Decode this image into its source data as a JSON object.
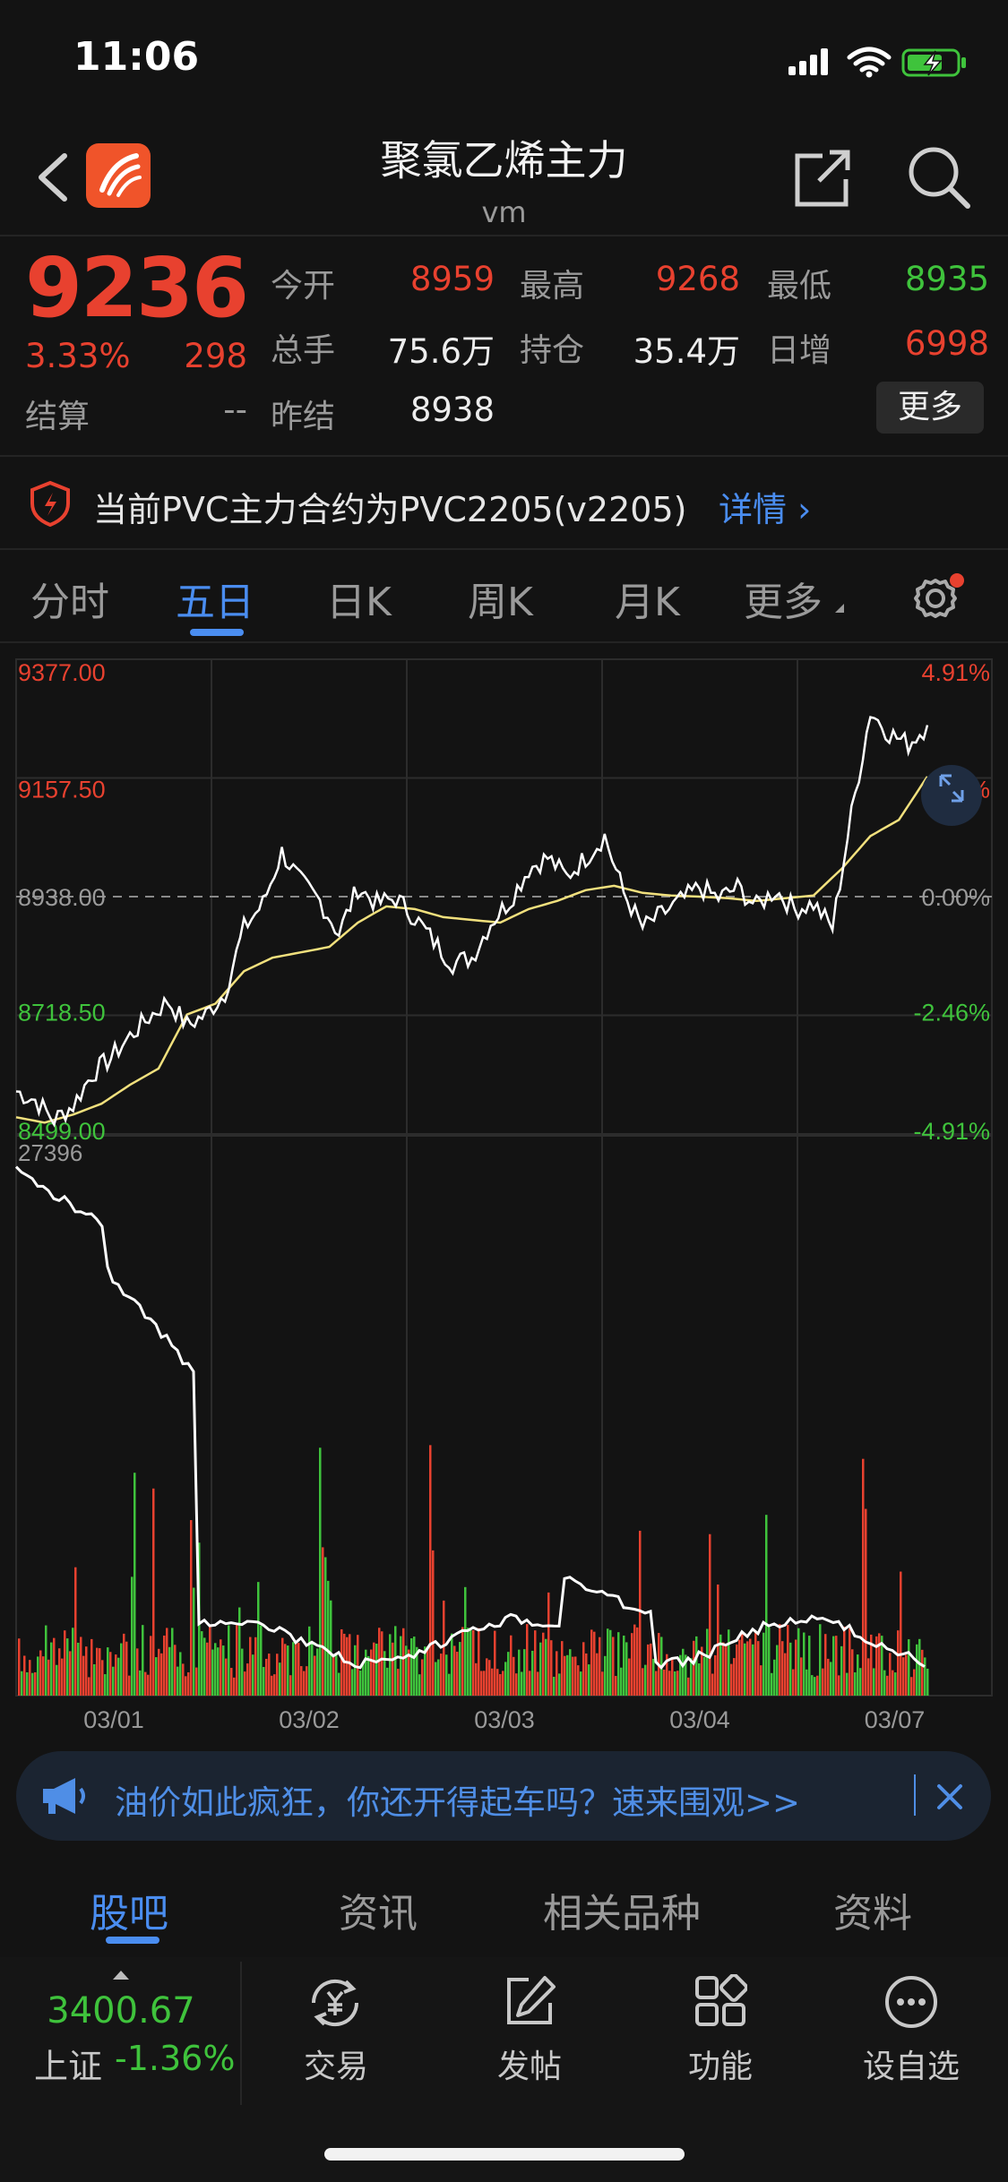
{
  "status_bar": {
    "time": "11:06"
  },
  "header": {
    "title": "聚氯乙烯主力",
    "subtitle": "vm"
  },
  "quote": {
    "price": "9236",
    "change_pct": "3.33%",
    "change": "298",
    "settle_label": "结算",
    "settle_value": "--",
    "rows": [
      {
        "label": "今开",
        "value": "8959",
        "color": "red"
      },
      {
        "label": "最高",
        "value": "9268",
        "color": "red"
      },
      {
        "label": "最低",
        "value": "8935",
        "color": "green"
      },
      {
        "label": "总手",
        "value": "75.6万",
        "color": "white"
      },
      {
        "label": "持仓",
        "value": "35.4万",
        "color": "white"
      },
      {
        "label": "日增",
        "value": "6998",
        "color": "red"
      },
      {
        "label": "昨结",
        "value": "8938",
        "color": "white"
      }
    ],
    "more_label": "更多"
  },
  "notice": {
    "text": "当前PVC主力合约为PVC2205(v2205)",
    "link": "详情 ›"
  },
  "tabs": {
    "items": [
      "分时",
      "五日",
      "日K",
      "周K",
      "月K",
      "更多"
    ],
    "active": 1
  },
  "chart_data": {
    "type": "line",
    "x_labels": [
      "03/01",
      "03/02",
      "03/03",
      "03/04",
      "03/07"
    ],
    "left_axis": [
      "9377.00",
      "9157.50",
      "8938.00",
      "8718.50",
      "8499.00"
    ],
    "right_axis": [
      "4.91%",
      "2.46%",
      "0.00%",
      "-2.46%",
      "-4.91%"
    ],
    "ylim": [
      8499,
      9377
    ],
    "prev_settle": 8938,
    "volume_top_label": "27396",
    "series": [
      {
        "name": "price",
        "values": [
          8578,
          8562,
          8525,
          8552,
          8610,
          8640,
          8680,
          8715,
          8745,
          8700,
          8720,
          8760,
          8880,
          8925,
          9020,
          8965,
          8930,
          8870,
          8955,
          8925,
          8935,
          8900,
          8855,
          8815,
          8825,
          8890,
          8930,
          8990,
          9010,
          8975,
          9010,
          9050,
          8945,
          8880,
          8905,
          8930,
          8955,
          8935,
          8955,
          8920,
          8950,
          8915,
          8925,
          8880,
          9090,
          9280,
          9240,
          9220,
          9255
        ]
      },
      {
        "name": "avg",
        "values": [
          8530,
          8520,
          8535,
          8555,
          8590,
          8620,
          8720,
          8740,
          8800,
          8825,
          8835,
          8845,
          8890,
          8920,
          8915,
          8900,
          8895,
          8890,
          8915,
          8930,
          8950,
          8958,
          8945,
          8940,
          8938,
          8935,
          8930,
          8935,
          8940,
          8990,
          9050,
          9080,
          9160
        ]
      }
    ],
    "volume_color_up": "#e8412f",
    "volume_color_down": "#3fc33c"
  },
  "banner": {
    "text": "油价如此疯狂，你还开得起车吗？速来围观>>"
  },
  "bottom_tabs": {
    "items": [
      "股吧",
      "资讯",
      "相关品种",
      "资料"
    ],
    "active": 0
  },
  "index": {
    "value": "3400.67",
    "name": "上证",
    "change": "-1.36%"
  },
  "nav": {
    "items": [
      {
        "label": "交易",
        "icon": "yuan-exchange-icon"
      },
      {
        "label": "发帖",
        "icon": "edit-post-icon"
      },
      {
        "label": "功能",
        "icon": "grid-icon"
      },
      {
        "label": "设自选",
        "icon": "more-dots-icon"
      }
    ]
  }
}
